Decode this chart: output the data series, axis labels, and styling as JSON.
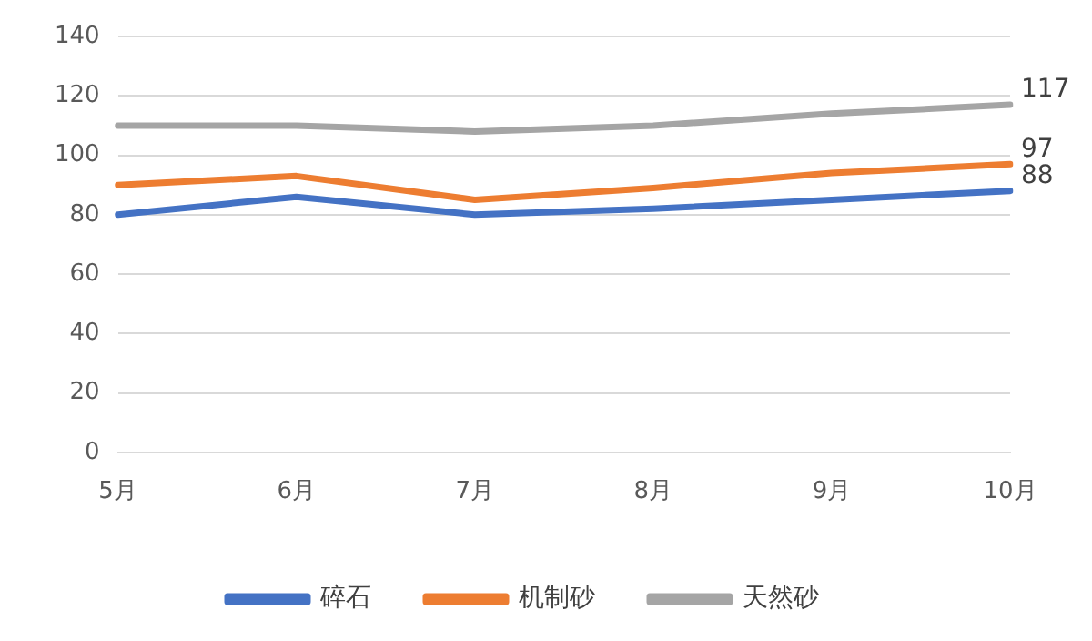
{
  "chart_data": {
    "type": "line",
    "categories": [
      "5月",
      "6月",
      "7月",
      "8月",
      "9月",
      "10月"
    ],
    "series": [
      {
        "name": "碎石",
        "color": "#4472c4",
        "values": [
          80,
          86,
          80,
          82,
          85,
          88
        ],
        "value_labels": [
          null,
          null,
          null,
          null,
          null,
          "88"
        ]
      },
      {
        "name": "机制砂",
        "color": "#ed7d31",
        "values": [
          90,
          93,
          85,
          89,
          94,
          97
        ],
        "value_labels": [
          null,
          null,
          null,
          null,
          null,
          "97"
        ]
      },
      {
        "name": "天然砂",
        "color": "#a5a5a5",
        "values": [
          110,
          110,
          108,
          110,
          114,
          117
        ],
        "value_labels": [
          null,
          null,
          null,
          null,
          null,
          "117"
        ]
      }
    ],
    "ylim": [
      0,
      140
    ],
    "yticks": [
      0,
      20,
      40,
      60,
      80,
      100,
      120,
      140
    ],
    "grid": "y",
    "legend": "bottom",
    "marker": "none"
  }
}
